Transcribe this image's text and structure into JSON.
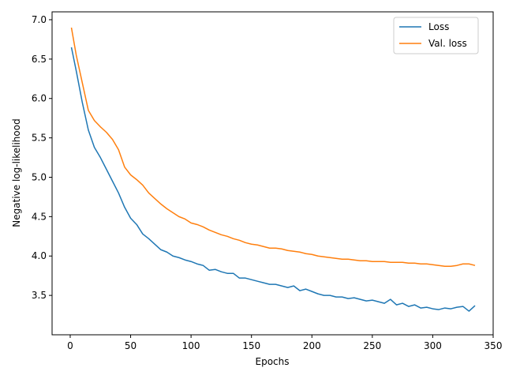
{
  "chart_data": {
    "type": "line",
    "xlabel": "Epochs",
    "ylabel": "Negative log-likelihood",
    "xlim": [
      -15,
      350
    ],
    "ylim": [
      3.0,
      7.1
    ],
    "xticks": [
      0,
      50,
      100,
      150,
      200,
      250,
      300,
      350
    ],
    "yticks": [
      3.5,
      4.0,
      4.5,
      5.0,
      5.5,
      6.0,
      6.5,
      7.0
    ],
    "ytick_labels": [
      "3.5",
      "4.0",
      "4.5",
      "5.0",
      "5.5",
      "6.0",
      "6.5",
      "7.0"
    ],
    "grid": false,
    "legend_position": "top-right",
    "series": [
      {
        "name": "Loss",
        "color": "#1f77b4",
        "x": [
          1,
          5,
          10,
          15,
          20,
          25,
          30,
          35,
          40,
          45,
          50,
          55,
          60,
          65,
          70,
          75,
          80,
          85,
          90,
          95,
          100,
          105,
          110,
          115,
          120,
          125,
          130,
          135,
          140,
          145,
          150,
          155,
          160,
          165,
          170,
          175,
          180,
          185,
          190,
          195,
          200,
          205,
          210,
          215,
          220,
          225,
          230,
          235,
          240,
          245,
          250,
          255,
          260,
          265,
          270,
          275,
          280,
          285,
          290,
          295,
          300,
          305,
          310,
          315,
          320,
          325,
          330,
          335
        ],
        "y": [
          6.65,
          6.35,
          5.95,
          5.6,
          5.38,
          5.25,
          5.1,
          4.95,
          4.8,
          4.62,
          4.48,
          4.4,
          4.28,
          4.22,
          4.15,
          4.08,
          4.05,
          4.0,
          3.98,
          3.95,
          3.93,
          3.9,
          3.88,
          3.82,
          3.83,
          3.8,
          3.78,
          3.78,
          3.72,
          3.72,
          3.7,
          3.68,
          3.66,
          3.64,
          3.64,
          3.62,
          3.6,
          3.62,
          3.56,
          3.58,
          3.55,
          3.52,
          3.5,
          3.5,
          3.48,
          3.48,
          3.46,
          3.47,
          3.45,
          3.43,
          3.44,
          3.42,
          3.4,
          3.45,
          3.38,
          3.4,
          3.36,
          3.38,
          3.34,
          3.35,
          3.33,
          3.32,
          3.34,
          3.33,
          3.35,
          3.36,
          3.3,
          3.37
        ]
      },
      {
        "name": "Val. loss",
        "color": "#ff7f0e",
        "x": [
          1,
          5,
          10,
          15,
          20,
          25,
          30,
          35,
          40,
          45,
          50,
          55,
          60,
          65,
          70,
          75,
          80,
          85,
          90,
          95,
          100,
          105,
          110,
          115,
          120,
          125,
          130,
          135,
          140,
          145,
          150,
          155,
          160,
          165,
          170,
          175,
          180,
          185,
          190,
          195,
          200,
          205,
          210,
          215,
          220,
          225,
          230,
          235,
          240,
          245,
          250,
          255,
          260,
          265,
          270,
          275,
          280,
          285,
          290,
          295,
          300,
          305,
          310,
          315,
          320,
          325,
          330,
          335
        ],
        "y": [
          6.9,
          6.55,
          6.2,
          5.85,
          5.72,
          5.64,
          5.57,
          5.48,
          5.35,
          5.13,
          5.03,
          4.97,
          4.9,
          4.8,
          4.73,
          4.66,
          4.6,
          4.55,
          4.5,
          4.47,
          4.42,
          4.4,
          4.37,
          4.33,
          4.3,
          4.27,
          4.25,
          4.22,
          4.2,
          4.17,
          4.15,
          4.14,
          4.12,
          4.1,
          4.1,
          4.09,
          4.07,
          4.06,
          4.05,
          4.03,
          4.02,
          4.0,
          3.99,
          3.98,
          3.97,
          3.96,
          3.96,
          3.95,
          3.94,
          3.94,
          3.93,
          3.93,
          3.93,
          3.92,
          3.92,
          3.92,
          3.91,
          3.91,
          3.9,
          3.9,
          3.89,
          3.88,
          3.87,
          3.87,
          3.88,
          3.9,
          3.9,
          3.88
        ]
      }
    ]
  }
}
